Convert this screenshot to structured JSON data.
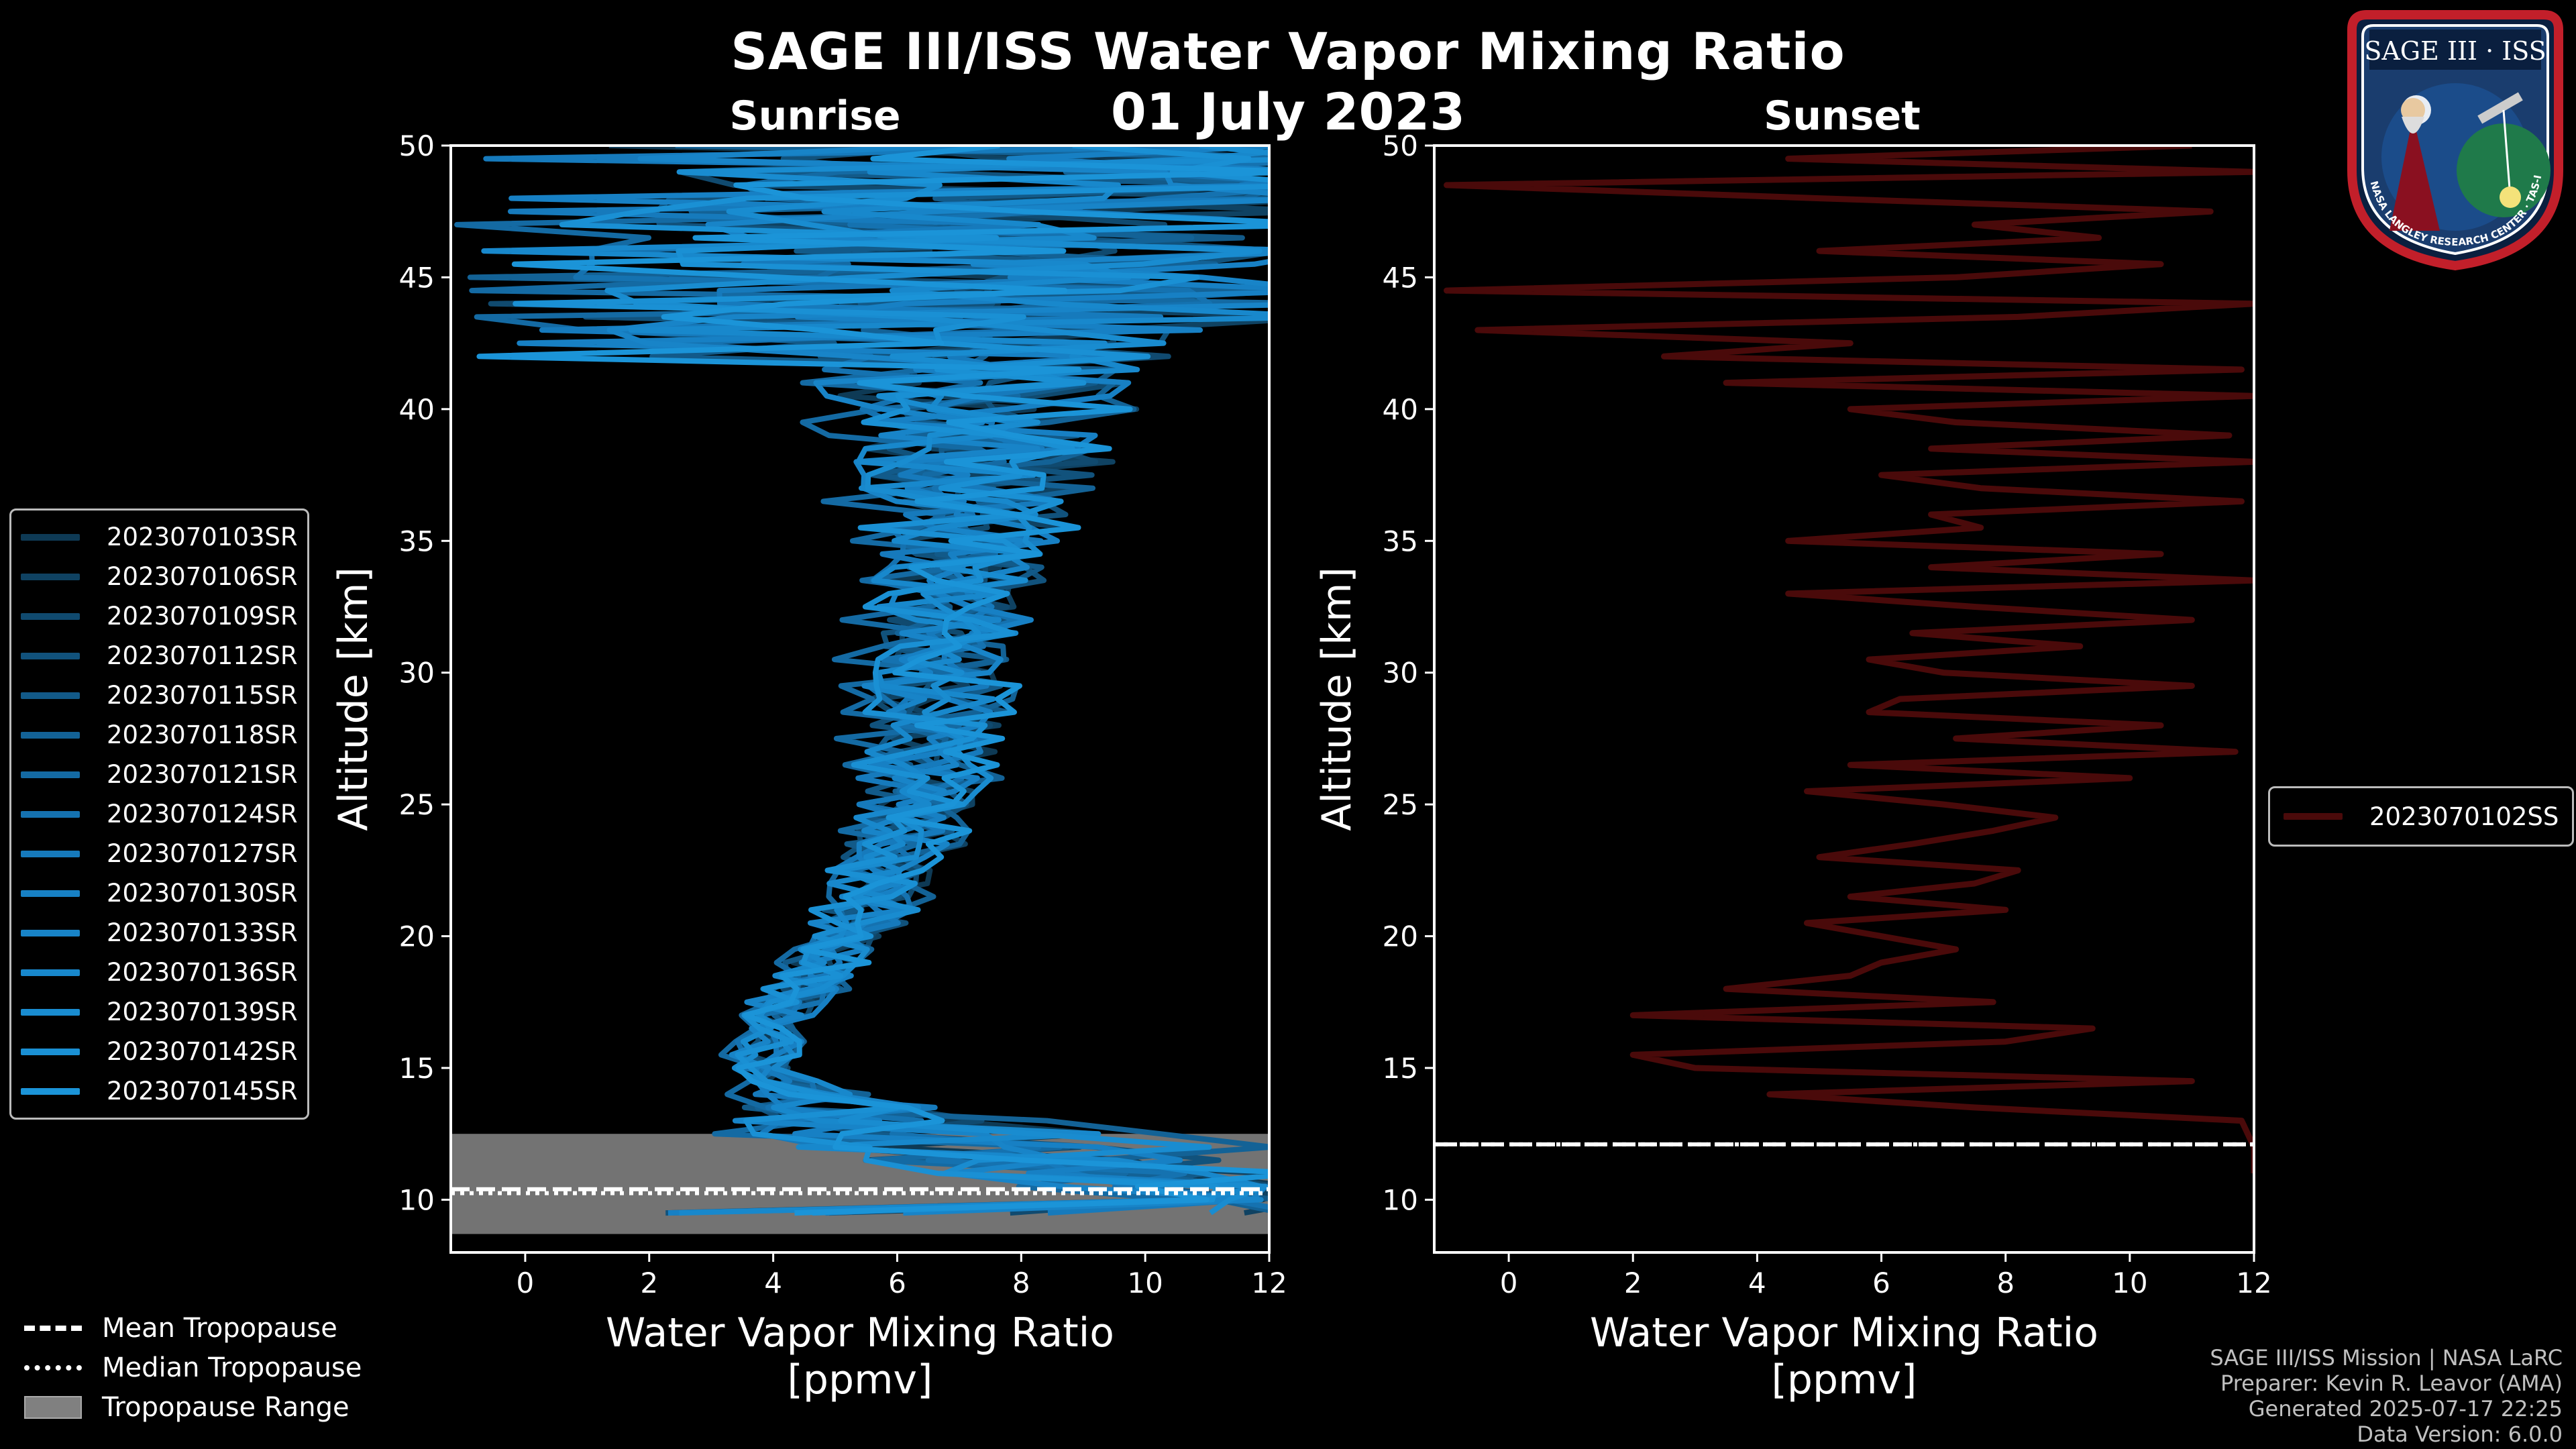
{
  "title": "SAGE III/ISS Water Vapor Mixing Ratio",
  "date": "01 July 2023",
  "footer": {
    "mission": "SAGE III/ISS Mission | NASA LaRC",
    "preparer": "Preparer: Kevin R. Leavor (AMA)",
    "generated": "Generated 2025-07-17 22:25",
    "version": "Data Version: 6.0.0"
  },
  "logo": {
    "title": "SAGE III · ISS",
    "ring_text": "BALL · NASA LANGLEY RESEARCH CENTER · TAS-I · ESA"
  },
  "tropopause_legend": {
    "mean": "Mean Tropopause",
    "median": "Median Tropopause",
    "range": "Tropopause Range"
  },
  "colors": {
    "background": "#000000",
    "sunrise": "#1A8FD0",
    "sunset": "#4A0A0A",
    "range_fill": "#808080"
  },
  "chart_data": [
    {
      "type": "line",
      "panel": "Sunrise",
      "xlabel": "Water Vapor Mixing Ratio\n[ppmv]",
      "ylabel": "Altitude [km]",
      "xlim": [
        -1.2,
        12
      ],
      "ylim": [
        8,
        50
      ],
      "xticks": [
        0,
        2,
        4,
        6,
        8,
        10,
        12
      ],
      "yticks": [
        10,
        15,
        20,
        25,
        30,
        35,
        40,
        45,
        50
      ],
      "tropopause": {
        "range": [
          8.7,
          12.5
        ],
        "mean": 10.4,
        "median": 10.25
      },
      "series": [
        {
          "name": "2023070103SR",
          "color": "#0E3A55"
        },
        {
          "name": "2023070106SR",
          "color": "#0F4262"
        },
        {
          "name": "2023070109SR",
          "color": "#104A6F"
        },
        {
          "name": "2023070112SR",
          "color": "#11527C"
        },
        {
          "name": "2023070115SR",
          "color": "#125A89"
        },
        {
          "name": "2023070118SR",
          "color": "#136296"
        },
        {
          "name": "2023070121SR",
          "color": "#146AA3"
        },
        {
          "name": "2023070124SR",
          "color": "#1572B0"
        },
        {
          "name": "2023070127SR",
          "color": "#167ABC"
        },
        {
          "name": "2023070130SR",
          "color": "#1780C4"
        },
        {
          "name": "2023070133SR",
          "color": "#1884C8"
        },
        {
          "name": "2023070136SR",
          "color": "#1888CC"
        },
        {
          "name": "2023070139SR",
          "color": "#198CD0"
        },
        {
          "name": "2023070142SR",
          "color": "#1A90D4"
        },
        {
          "name": "2023070145SR",
          "color": "#1B94D8"
        }
      ],
      "profile_nodes": [
        {
          "alt": 10.0,
          "mean": 11.5,
          "spread": 1.0
        },
        {
          "alt": 11.0,
          "mean": 9.0,
          "spread": 3.0
        },
        {
          "alt": 12.0,
          "mean": 7.5,
          "spread": 3.5
        },
        {
          "alt": 13.0,
          "mean": 5.5,
          "spread": 2.5
        },
        {
          "alt": 14.0,
          "mean": 4.3,
          "spread": 1.0
        },
        {
          "alt": 15.0,
          "mean": 3.8,
          "spread": 0.5
        },
        {
          "alt": 17.0,
          "mean": 4.0,
          "spread": 0.6
        },
        {
          "alt": 20.0,
          "mean": 5.2,
          "spread": 0.8
        },
        {
          "alt": 25.0,
          "mean": 6.3,
          "spread": 1.0
        },
        {
          "alt": 30.0,
          "mean": 6.6,
          "spread": 1.2
        },
        {
          "alt": 35.0,
          "mean": 7.0,
          "spread": 1.5
        },
        {
          "alt": 40.0,
          "mean": 7.2,
          "spread": 2.2
        },
        {
          "alt": 45.0,
          "mean": 7.0,
          "spread": 4.5
        },
        {
          "alt": 50.0,
          "mean": 6.5,
          "spread": 6.0
        }
      ],
      "legend_loc": "outside-left"
    },
    {
      "type": "line",
      "panel": "Sunset",
      "xlabel": "Water Vapor Mixing Ratio\n[ppmv]",
      "ylabel": "Altitude [km]",
      "xlim": [
        -1.2,
        12
      ],
      "ylim": [
        8,
        50
      ],
      "xticks": [
        0,
        2,
        4,
        6,
        8,
        10,
        12
      ],
      "yticks": [
        10,
        15,
        20,
        25,
        30,
        35,
        40,
        45,
        50
      ],
      "tropopause": {
        "mean": 12.1,
        "median": 12.1
      },
      "series": [
        {
          "name": "2023070102SS",
          "color": "#4A0A0A",
          "alt": [
            11.0,
            11.5,
            12.0,
            13.0,
            13.5,
            14.0,
            14.5,
            15.0,
            15.5,
            16.0,
            16.5,
            17.0,
            17.5,
            18.0,
            18.5,
            19.0,
            19.5,
            20.0,
            20.5,
            21.0,
            21.5,
            22.0,
            22.5,
            23.0,
            23.5,
            24.0,
            24.5,
            25.0,
            25.5,
            26.0,
            26.5,
            27.0,
            27.5,
            28.0,
            28.5,
            29.0,
            29.5,
            30.0,
            30.5,
            31.0,
            31.5,
            32.0,
            32.5,
            33.0,
            33.5,
            34.0,
            34.5,
            35.0,
            35.5,
            36.0,
            36.5,
            37.0,
            37.5,
            38.0,
            38.5,
            39.0,
            39.5,
            40.0,
            40.5,
            41.0,
            41.5,
            42.0,
            42.5,
            43.0,
            43.5,
            44.0,
            44.5,
            45.0,
            45.5,
            46.0,
            46.5,
            47.0,
            47.5,
            48.0,
            48.5,
            49.0,
            49.5,
            50.0
          ],
          "values": [
            12.0,
            12.0,
            12.0,
            11.8,
            7.5,
            4.2,
            11.0,
            3.0,
            2.0,
            8.0,
            9.4,
            2.0,
            7.8,
            3.5,
            5.5,
            6.0,
            7.2,
            6.0,
            4.8,
            8.0,
            5.5,
            7.5,
            8.2,
            5.0,
            6.5,
            7.8,
            8.8,
            7.0,
            4.8,
            10.0,
            5.5,
            11.7,
            7.2,
            10.5,
            5.8,
            6.3,
            11.0,
            7.0,
            5.8,
            9.2,
            6.5,
            11.0,
            7.5,
            4.5,
            12.0,
            6.8,
            10.5,
            4.5,
            7.6,
            6.8,
            11.8,
            7.6,
            6.0,
            12.0,
            6.8,
            11.6,
            7.2,
            5.5,
            12.0,
            3.5,
            11.8,
            2.5,
            5.5,
            -0.5,
            8.2,
            12.0,
            -1.0,
            7.2,
            10.5,
            5.0,
            9.5,
            7.5,
            11.3,
            5.0,
            -1.0,
            12.0,
            4.5,
            11.0
          ]
        }
      ],
      "legend_loc": "outside-right"
    }
  ]
}
